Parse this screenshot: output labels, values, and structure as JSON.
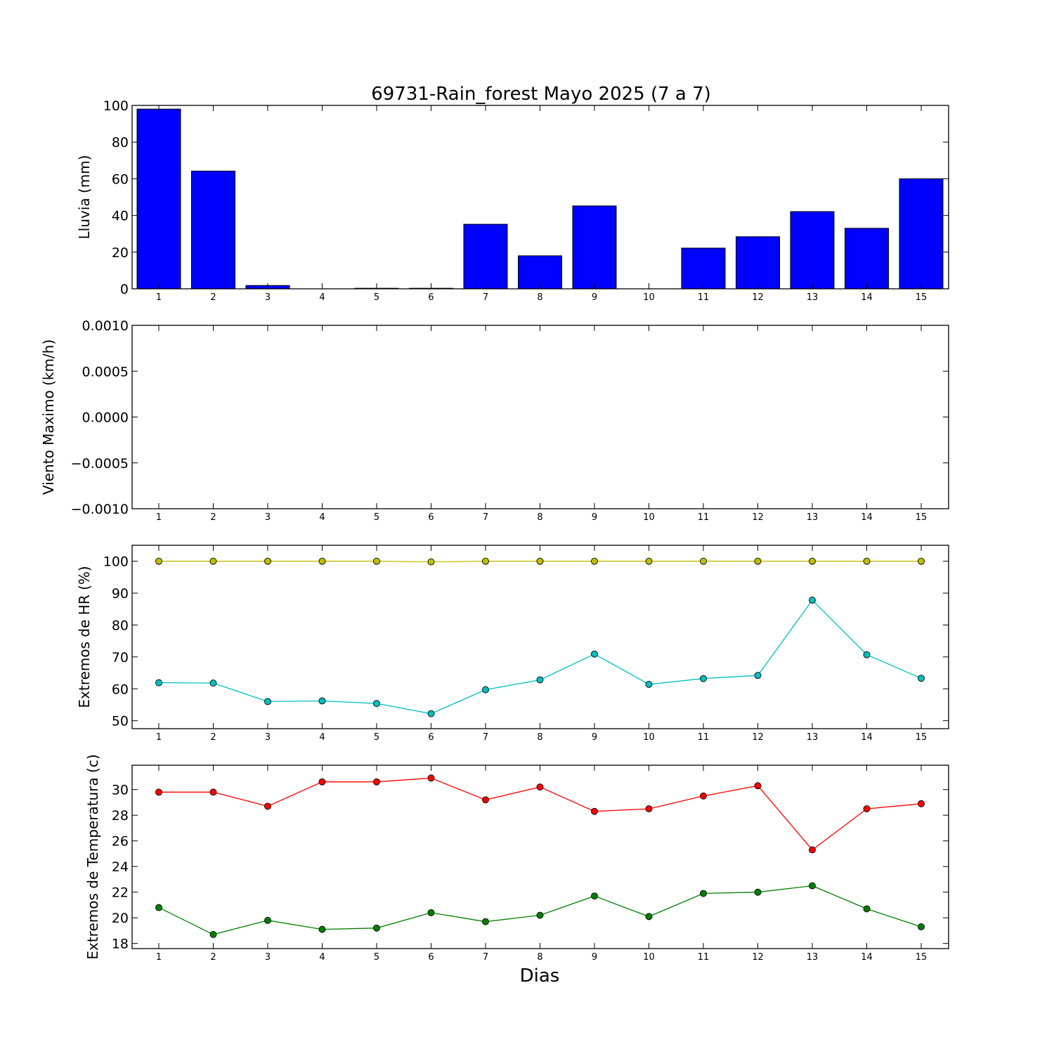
{
  "figure": {
    "title": "69731-Rain_forest Mayo 2025  (7 a 7)",
    "xlabel": "Dias"
  },
  "chart_data": [
    {
      "type": "bar",
      "ylabel": "Lluvia (mm)",
      "categories": [
        1,
        2,
        3,
        4,
        5,
        6,
        7,
        8,
        9,
        10,
        11,
        12,
        13,
        14,
        15
      ],
      "values": [
        98,
        64.2,
        1.8,
        0,
        0.3,
        0.3,
        35.2,
        18,
        45.2,
        0,
        22.2,
        28.4,
        42.1,
        33,
        60
      ],
      "ylim": [
        0,
        100
      ],
      "yticks": [
        "0",
        "20",
        "40",
        "60",
        "80",
        "100"
      ],
      "color": "#0000ff"
    },
    {
      "type": "line",
      "ylabel": "Viento Maximo (km/h)",
      "categories": [
        1,
        2,
        3,
        4,
        5,
        6,
        7,
        8,
        9,
        10,
        11,
        12,
        13,
        14,
        15
      ],
      "series": [],
      "ylim": [
        -0.001,
        0.001
      ],
      "yticks": [
        "−0.0010",
        "−0.0005",
        "0.0000",
        "0.0005",
        "0.0010"
      ]
    },
    {
      "type": "line",
      "ylabel": "Extremos de HR (%)",
      "categories": [
        1,
        2,
        3,
        4,
        5,
        6,
        7,
        8,
        9,
        10,
        11,
        12,
        13,
        14,
        15
      ],
      "series": [
        {
          "color": "#bfbf00",
          "values": [
            100,
            100,
            100,
            100,
            100,
            99.8,
            100,
            100,
            100,
            100,
            100,
            100,
            100,
            100,
            100
          ]
        },
        {
          "color": "#00bfbf",
          "values": [
            61.9,
            61.8,
            56,
            56.2,
            55.4,
            52.2,
            59.7,
            62.8,
            70.9,
            61.4,
            63.2,
            64.2,
            87.8,
            70.7,
            63.3
          ]
        }
      ],
      "ylim": [
        47.5,
        105
      ],
      "yticks": [
        "50",
        "60",
        "70",
        "80",
        "90",
        "100"
      ]
    },
    {
      "type": "line",
      "ylabel": "Extremos de Temperatura (c)",
      "categories": [
        1,
        2,
        3,
        4,
        5,
        6,
        7,
        8,
        9,
        10,
        11,
        12,
        13,
        14,
        15
      ],
      "series": [
        {
          "color": "#ff0000",
          "values": [
            29.8,
            29.8,
            28.7,
            30.6,
            30.6,
            30.9,
            29.2,
            30.2,
            28.3,
            28.5,
            29.5,
            30.3,
            25.3,
            28.5,
            28.9
          ]
        },
        {
          "color": "#008000",
          "values": [
            20.8,
            18.7,
            19.8,
            19.1,
            19.2,
            20.4,
            19.7,
            20.2,
            21.7,
            20.1,
            21.9,
            22,
            22.5,
            20.7,
            19.3
          ]
        }
      ],
      "ylim": [
        17.6,
        31.9
      ],
      "yticks": [
        "18",
        "20",
        "22",
        "24",
        "26",
        "28",
        "30"
      ]
    }
  ]
}
